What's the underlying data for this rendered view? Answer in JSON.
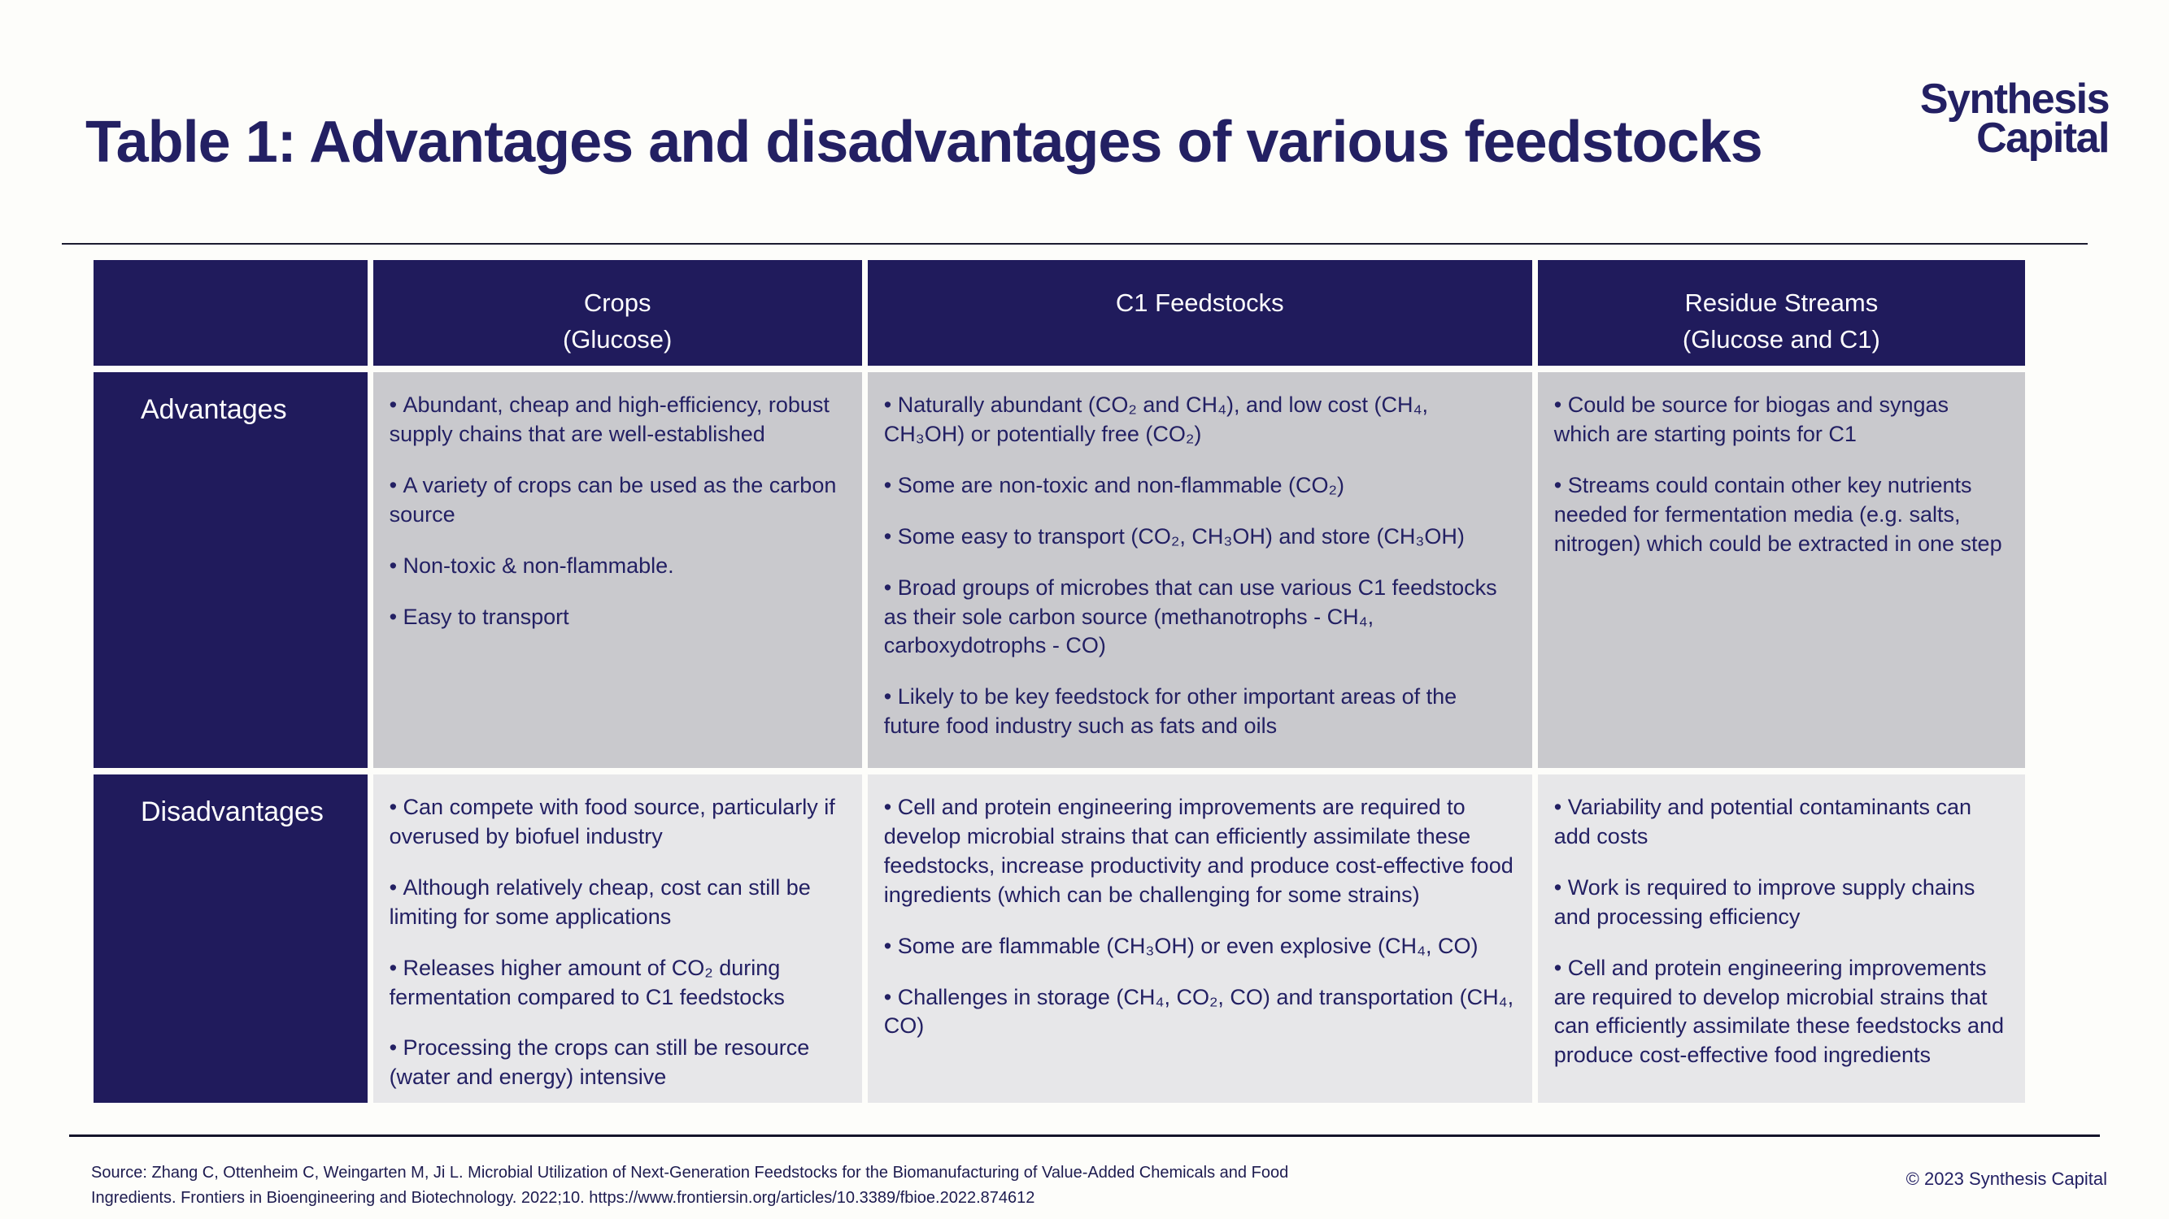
{
  "page": {
    "title": "Table 1: Advantages and disadvantages of various feedstocks",
    "logo": {
      "line1": "Synthesis",
      "line2": "Capital"
    },
    "source": "Source: Zhang C, Ottenheim C, Weingarten M, Ji L. Microbial Utilization of Next-Generation Feedstocks for the Biomanufacturing of Value-Added Chemicals and Food Ingredients. Frontiers in Bioengineering and Biotechnology. 2022;10. https://www.frontiersin.org/articles/10.3389/fbioe.2022.874612",
    "copyright": "© 2023 Synthesis Capital"
  },
  "colors": {
    "navy": "#232063",
    "header_bg": "#201B5C",
    "advantages_cell_bg": "#C9C9CD",
    "disadvantages_cell_bg": "#E7E7E9",
    "page_bg": "#FDFDFA"
  },
  "table": {
    "column_headers": [
      {
        "id": "blank",
        "lines": []
      },
      {
        "id": "crops",
        "lines": [
          "Crops",
          "(Glucose)"
        ]
      },
      {
        "id": "c1-feedstocks",
        "lines": [
          "C1 Feedstocks"
        ]
      },
      {
        "id": "residue-streams",
        "lines": [
          "Residue Streams",
          "(Glucose and C1)"
        ]
      }
    ],
    "rows": [
      {
        "label": "Advantages",
        "cells": [
          [
            "Abundant, cheap and high-efficiency, robust supply chains that are well-established",
            "A variety of crops can be used as the carbon source",
            "Non-toxic & non-flammable.",
            "Easy to transport"
          ],
          [
            "Naturally abundant (CO₂ and CH₄), and low cost (CH₄, CH₃OH) or potentially free (CO₂)",
            "Some are non-toxic and non-flammable (CO₂)",
            "Some easy to transport (CO₂, CH₃OH) and store (CH₃OH)",
            "Broad groups of microbes that can use various C1 feedstocks as their sole carbon source (methanotrophs - CH₄, carboxydotrophs - CO)",
            "Likely to be key feedstock for other important areas of the future food industry such as fats and oils"
          ],
          [
            "Could be source for biogas and syngas which are starting points for C1",
            "Streams could contain other key nutrients needed for fermentation media (e.g. salts, nitrogen) which could be extracted in one step"
          ]
        ]
      },
      {
        "label": "Disadvantages",
        "cells": [
          [
            "Can compete with food source, particularly if overused by biofuel industry",
            "Although relatively cheap, cost can still be limiting for some applications",
            "Releases higher amount of CO₂ during fermentation compared to C1 feedstocks",
            "Processing the crops can still be resource (water and energy) intensive"
          ],
          [
            "Cell and protein engineering improvements are required to develop microbial strains that can efficiently assimilate these feedstocks, increase productivity and produce cost-effective food ingredients (which can be challenging for some strains)",
            "Some are flammable (CH₃OH) or even explosive (CH₄, CO)",
            "Challenges in storage (CH₄, CO₂, CO) and transportation (CH₄, CO)"
          ],
          [
            "Variability and potential contaminants can add costs",
            "Work is required to improve supply chains and processing efficiency",
            "Cell and protein engineering improvements are required to develop microbial strains that can efficiently assimilate these feedstocks and produce cost-effective food ingredients"
          ]
        ]
      }
    ]
  }
}
